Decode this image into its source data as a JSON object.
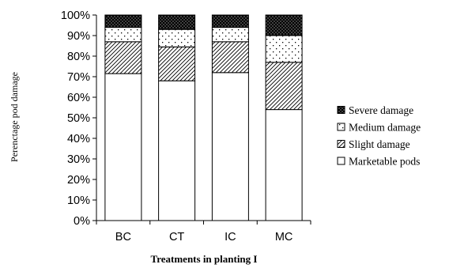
{
  "chart_data": {
    "type": "bar",
    "stacked": true,
    "percent_stacked": true,
    "categories": [
      "BC",
      "CT",
      "IC",
      "MC"
    ],
    "series": [
      {
        "name": "Marketable pods",
        "values": [
          71.5,
          68,
          72,
          54
        ],
        "pattern": "none"
      },
      {
        "name": "Slight damage",
        "values": [
          15.5,
          16.5,
          15,
          23
        ],
        "pattern": "diagonal-hatch"
      },
      {
        "name": "Medium damage",
        "values": [
          7,
          8.5,
          7,
          13
        ],
        "pattern": "sparse-dots"
      },
      {
        "name": "Severe damage",
        "values": [
          6,
          7,
          6,
          10
        ],
        "pattern": "dense-dots-black"
      }
    ],
    "title": "",
    "xlabel": "Treatments in planting I",
    "ylabel": "Perenctage pod damage",
    "ylim": [
      0,
      100
    ],
    "yticks": [
      "0%",
      "10%",
      "20%",
      "30%",
      "40%",
      "50%",
      "60%",
      "70%",
      "80%",
      "90%",
      "100%"
    ],
    "grid": false,
    "legend_position": "right",
    "legend_order": [
      "Severe damage",
      "Medium damage",
      "Slight damage",
      "Marketable pods"
    ],
    "colors": {
      "fill": "#ffffff",
      "stroke": "#000000",
      "dark": "#000000"
    }
  }
}
